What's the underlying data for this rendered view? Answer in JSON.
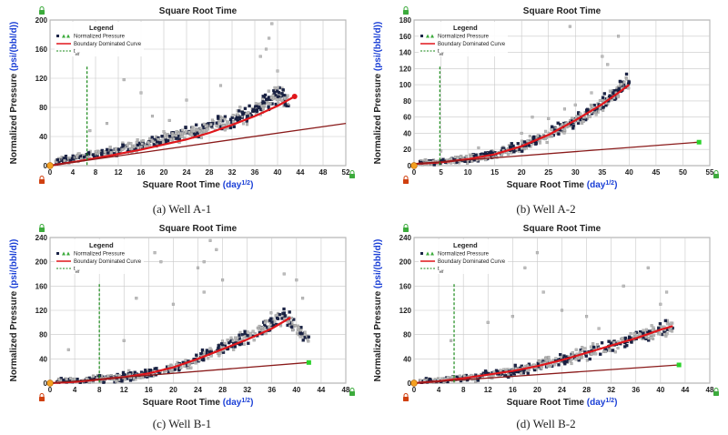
{
  "chart_data": [
    {
      "type": "scatter",
      "panel": "a",
      "caption": "(a) Well A-1",
      "title": "Square Root Time",
      "xlabel": "Square Root Time",
      "xlabel_unit": "(day^1/2)",
      "ylabel": "Normalized Pressure",
      "ylabel_unit": "(psi/(bbl/d))",
      "xlim": [
        0,
        52
      ],
      "ylim": [
        0,
        200
      ],
      "xticks": [
        0,
        4,
        8,
        12,
        16,
        20,
        24,
        28,
        32,
        36,
        40,
        44,
        48,
        52
      ],
      "yticks": [
        0,
        40,
        80,
        120,
        160,
        200
      ],
      "legend": {
        "title": "Legend",
        "entries": [
          "Normalized Pressure",
          "Boundary Dominated Curve",
          "t_elf"
        ],
        "placement": "top-left"
      },
      "telf_x": 6.5,
      "series": [
        {
          "name": "Normalized Pressure",
          "points": [
            [
              2,
              8
            ],
            [
              5,
              12
            ],
            [
              8,
              16
            ],
            [
              12,
              24
            ],
            [
              16,
              32
            ],
            [
              20,
              38
            ],
            [
              24,
              48
            ],
            [
              28,
              56
            ],
            [
              32,
              64
            ],
            [
              36,
              74
            ],
            [
              38,
              90
            ],
            [
              40,
              110
            ],
            [
              42,
              88
            ]
          ]
        },
        {
          "name": "Boundary Dominated Curve",
          "points": [
            [
              0,
              0
            ],
            [
              5,
              6
            ],
            [
              10,
              13
            ],
            [
              16,
              22
            ],
            [
              20,
              29
            ],
            [
              24,
              36
            ],
            [
              28,
              45
            ],
            [
              32,
              56
            ],
            [
              36,
              68
            ],
            [
              40,
              82
            ],
            [
              43,
              95
            ]
          ]
        },
        {
          "name": "straight line",
          "points": [
            [
              0,
              0
            ],
            [
              52,
              58
            ]
          ]
        }
      ],
      "scatter_trend": [
        [
          1,
          6
        ],
        [
          5,
          11
        ],
        [
          10,
          18
        ],
        [
          15,
          26
        ],
        [
          20,
          36
        ],
        [
          25,
          46
        ],
        [
          30,
          58
        ],
        [
          35,
          72
        ],
        [
          38,
          88
        ],
        [
          40,
          100
        ],
        [
          42,
          85
        ]
      ],
      "scatter_spread": 14,
      "outliers": [
        [
          7,
          48
        ],
        [
          10,
          58
        ],
        [
          13,
          118
        ],
        [
          16,
          100
        ],
        [
          18,
          68
        ],
        [
          21,
          62
        ],
        [
          24,
          90
        ],
        [
          30,
          110
        ],
        [
          38,
          160
        ],
        [
          38.5,
          175
        ],
        [
          39,
          195
        ],
        [
          37,
          150
        ],
        [
          40,
          130
        ]
      ],
      "endpoint_red": [
        43,
        95
      ],
      "endpoint_green": null
    },
    {
      "type": "scatter",
      "panel": "b",
      "caption": "(b) Well A-2",
      "title": "Square Root Time",
      "xlabel": "Square Root Time",
      "xlabel_unit": "(day^1/2)",
      "ylabel": "Normalized Pressure",
      "ylabel_unit": "(psi/(bbl/d))",
      "xlim": [
        0,
        55
      ],
      "ylim": [
        0,
        180
      ],
      "xticks": [
        0,
        5,
        10,
        15,
        20,
        25,
        30,
        35,
        40,
        45,
        50,
        55
      ],
      "yticks": [
        0,
        20,
        40,
        60,
        80,
        100,
        120,
        140,
        160,
        180
      ],
      "legend": {
        "title": "Legend",
        "entries": [
          "Normalized Pressure",
          "Boundary Dominated Curve",
          "t_elf"
        ],
        "placement": "top-left"
      },
      "telf_x": 4.8,
      "series": [
        {
          "name": "Boundary Dominated Curve",
          "points": [
            [
              0,
              2
            ],
            [
              5,
              4
            ],
            [
              10,
              8
            ],
            [
              15,
              14
            ],
            [
              20,
              24
            ],
            [
              25,
              38
            ],
            [
              30,
              56
            ],
            [
              35,
              76
            ],
            [
              38,
              90
            ],
            [
              40,
              100
            ]
          ]
        },
        {
          "name": "straight line",
          "points": [
            [
              0,
              2
            ],
            [
              53,
              29
            ]
          ]
        }
      ],
      "scatter_trend": [
        [
          1,
          3
        ],
        [
          5,
          5
        ],
        [
          10,
          8
        ],
        [
          15,
          14
        ],
        [
          20,
          24
        ],
        [
          25,
          38
        ],
        [
          30,
          56
        ],
        [
          35,
          76
        ],
        [
          38,
          92
        ],
        [
          40,
          105
        ]
      ],
      "scatter_spread": 10,
      "outliers": [
        [
          5,
          18
        ],
        [
          12,
          22
        ],
        [
          20,
          40
        ],
        [
          22,
          60
        ],
        [
          25,
          58
        ],
        [
          28,
          70
        ],
        [
          30,
          75
        ],
        [
          35,
          135
        ],
        [
          36,
          125
        ],
        [
          38,
          160
        ],
        [
          29,
          172
        ],
        [
          33,
          90
        ]
      ],
      "endpoint_red": null,
      "endpoint_green": [
        53,
        29
      ]
    },
    {
      "type": "scatter",
      "panel": "c",
      "caption": "(c) Well B-1",
      "title": "Square Root Time",
      "xlabel": "Square Root Time",
      "xlabel_unit": "(day^1/2)",
      "ylabel": "Normalized Pressure",
      "ylabel_unit": "(psi/(bbl/d))",
      "xlim": [
        0,
        48
      ],
      "ylim": [
        0,
        240
      ],
      "xticks": [
        0,
        4,
        8,
        12,
        16,
        20,
        24,
        28,
        32,
        36,
        40,
        44,
        48
      ],
      "yticks": [
        0,
        40,
        80,
        120,
        160,
        200,
        240
      ],
      "legend": {
        "title": "Legend",
        "entries": [
          "Normalized Pressure",
          "Boundary Dominated Curve",
          "t_elf"
        ],
        "placement": "top-left"
      },
      "telf_x": 8,
      "series": [
        {
          "name": "Boundary Dominated Curve",
          "points": [
            [
              0,
              0
            ],
            [
              4,
              2
            ],
            [
              8,
              6
            ],
            [
              12,
              10
            ],
            [
              16,
              16
            ],
            [
              20,
              26
            ],
            [
              24,
              40
            ],
            [
              28,
              56
            ],
            [
              32,
              72
            ],
            [
              36,
              90
            ],
            [
              39,
              108
            ]
          ]
        },
        {
          "name": "straight line",
          "points": [
            [
              0,
              0
            ],
            [
              42,
              34
            ]
          ]
        }
      ],
      "scatter_trend": [
        [
          1,
          3
        ],
        [
          5,
          5
        ],
        [
          10,
          8
        ],
        [
          15,
          14
        ],
        [
          20,
          24
        ],
        [
          24,
          40
        ],
        [
          28,
          58
        ],
        [
          32,
          76
        ],
        [
          36,
          100
        ],
        [
          38,
          110
        ],
        [
          40,
          90
        ],
        [
          42,
          70
        ]
      ],
      "scatter_spread": 14,
      "outliers": [
        [
          3,
          55
        ],
        [
          12,
          70
        ],
        [
          14,
          140
        ],
        [
          17,
          215
        ],
        [
          18,
          200
        ],
        [
          20,
          130
        ],
        [
          24,
          190
        ],
        [
          25,
          200
        ],
        [
          26,
          235
        ],
        [
          27,
          220
        ],
        [
          25,
          150
        ],
        [
          28,
          170
        ],
        [
          38,
          180
        ],
        [
          40,
          170
        ],
        [
          41,
          140
        ]
      ],
      "endpoint_red": null,
      "endpoint_green": [
        42,
        34
      ]
    },
    {
      "type": "scatter",
      "panel": "d",
      "caption": "(d) Well B-2",
      "title": "Square Root Time",
      "xlabel": "Square Root Time",
      "xlabel_unit": "(day^1/2)",
      "ylabel": "Normalized Pressure",
      "ylabel_unit": "(psi/(bbl/d))",
      "xlim": [
        0,
        48
      ],
      "ylim": [
        0,
        240
      ],
      "xticks": [
        0,
        4,
        8,
        12,
        16,
        20,
        24,
        28,
        32,
        36,
        40,
        44,
        48
      ],
      "yticks": [
        0,
        40,
        80,
        120,
        160,
        200,
        240
      ],
      "legend": {
        "title": "Legend",
        "entries": [
          "Normalized Pressure",
          "Boundary Dominated Curve",
          "t_elf"
        ],
        "placement": "top-left"
      },
      "telf_x": 6.5,
      "series": [
        {
          "name": "Boundary Dominated Curve",
          "points": [
            [
              0,
              0
            ],
            [
              4,
              3
            ],
            [
              8,
              8
            ],
            [
              12,
              14
            ],
            [
              16,
              20
            ],
            [
              20,
              28
            ],
            [
              24,
              38
            ],
            [
              28,
              50
            ],
            [
              32,
              62
            ],
            [
              36,
              74
            ],
            [
              40,
              88
            ],
            [
              42,
              94
            ]
          ]
        },
        {
          "name": "straight line",
          "points": [
            [
              0,
              0
            ],
            [
              43,
              30
            ]
          ]
        }
      ],
      "scatter_trend": [
        [
          1,
          3
        ],
        [
          5,
          5
        ],
        [
          10,
          10
        ],
        [
          15,
          18
        ],
        [
          20,
          28
        ],
        [
          24,
          38
        ],
        [
          28,
          50
        ],
        [
          32,
          62
        ],
        [
          36,
          76
        ],
        [
          40,
          88
        ],
        [
          42,
          95
        ]
      ],
      "scatter_spread": 14,
      "outliers": [
        [
          6,
          70
        ],
        [
          12,
          100
        ],
        [
          16,
          110
        ],
        [
          18,
          190
        ],
        [
          20,
          215
        ],
        [
          21,
          150
        ],
        [
          24,
          120
        ],
        [
          28,
          110
        ],
        [
          30,
          90
        ],
        [
          34,
          160
        ],
        [
          38,
          190
        ],
        [
          41,
          150
        ],
        [
          40,
          130
        ]
      ],
      "endpoint_red": null,
      "endpoint_green": [
        43,
        30
      ]
    }
  ]
}
